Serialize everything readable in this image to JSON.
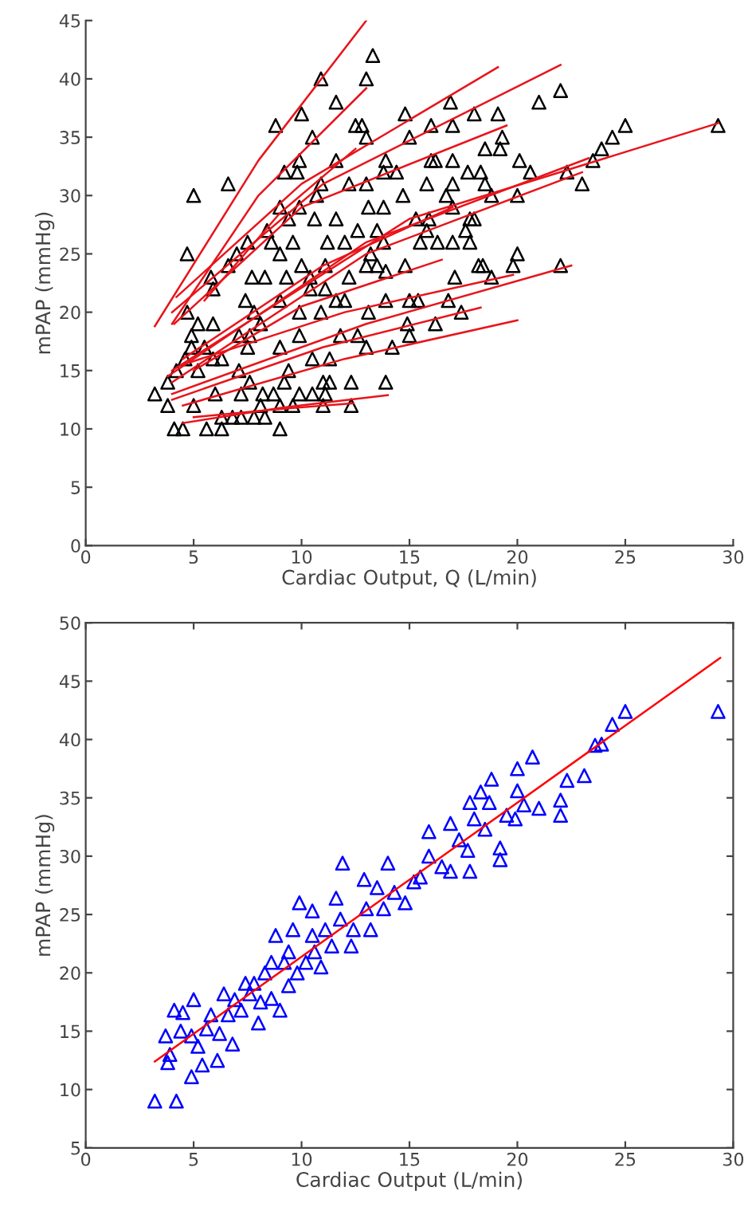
{
  "chart_data": [
    {
      "type": "scatter",
      "xlabel": "Cardiac Output, Q (L/min)",
      "ylabel": "mPAP (mmHg)",
      "xlim": [
        0,
        30
      ],
      "ylim": [
        0,
        45
      ],
      "xticks": [
        0,
        5,
        10,
        15,
        20,
        25,
        30
      ],
      "yticks": [
        0,
        5,
        10,
        15,
        20,
        25,
        30,
        35,
        40,
        45
      ],
      "grid": false,
      "legend": false,
      "series": [
        {
          "color": "#000000",
          "marker": "triangle",
          "x": [
            13.3,
            10.9,
            13.0,
            11.6,
            10.0,
            8.8,
            10.5,
            12.5,
            12.8,
            13.0,
            14.8,
            15.0,
            16.0,
            16.9,
            17.0,
            18.0,
            19.1,
            21.0,
            22.0,
            25.0,
            24.4,
            23.9,
            23.5,
            29.3,
            22.3,
            23.0,
            20.6,
            20.1,
            20.0,
            19.2,
            19.3,
            18.5,
            17.7,
            18.3,
            18.5,
            18.8,
            17.0,
            16.2,
            16.0,
            15.8,
            17.0,
            16.7,
            17.0,
            14.7,
            13.9,
            14.4,
            13.8,
            13.0,
            13.1,
            13.8,
            12.2,
            11.6,
            10.9,
            10.7,
            9.9,
            9.8,
            9.2,
            9.9,
            9.0,
            9.4,
            10.6,
            11.6,
            12.6,
            13.5,
            15.3,
            15.9,
            15.8,
            17.8,
            18.0,
            17.6,
            17.8,
            17.0,
            16.3,
            15.5,
            13.8,
            13.2,
            13.5,
            13.9,
            14.8,
            13.0,
            19.8,
            20.0,
            18.2,
            18.4,
            18.8,
            17.1,
            22.0,
            16.8,
            17.4,
            16.2,
            15.0,
            15.4,
            14.9,
            15.0,
            13.9,
            13.1,
            14.2,
            13.9,
            13.0,
            12.6,
            12.3,
            12.3,
            11.8,
            11.3,
            10.5,
            10.9,
            9.9,
            9.9,
            11.0,
            11.3,
            11.1,
            10.5,
            9.9,
            11.0,
            9.6,
            9.0,
            9.2,
            9.4,
            9.0,
            8.7,
            8.1,
            9.0,
            8.3,
            7.8,
            7.2,
            6.8,
            6.3,
            6.3,
            5.6,
            4.5,
            4.1,
            5.0,
            6.0,
            7.2,
            7.6,
            7.1,
            8.2,
            3.2,
            3.8,
            3.8,
            4.2,
            4.6,
            5.2,
            4.9,
            4.7,
            5.2,
            4.9,
            5.5,
            5.9,
            6.3,
            5.9,
            5.9,
            5.8,
            4.7,
            5.0,
            6.6,
            6.6,
            7.0,
            7.4,
            7.1,
            7.6,
            7.5,
            7.7,
            7.5,
            7.8,
            8.1,
            8.3,
            8.4,
            8.6,
            9.0,
            9.0,
            9.3,
            9.6,
            10.0,
            10.4,
            10.4,
            11.1,
            11.2,
            12.0,
            12.2,
            12.0,
            11.6,
            11.1
          ],
          "values": [
            42,
            40,
            40,
            38,
            37,
            36,
            35,
            36,
            36,
            35,
            37,
            35,
            36,
            38,
            36,
            37,
            37,
            38,
            39,
            36,
            35,
            34,
            33,
            36,
            32,
            31,
            32,
            33,
            30,
            34,
            35,
            34,
            32,
            32,
            31,
            30,
            33,
            33,
            33,
            31,
            31,
            30,
            29,
            30,
            33,
            32,
            32,
            31,
            29,
            29,
            31,
            33,
            31,
            30,
            33,
            32,
            32,
            29,
            29,
            28,
            28,
            28,
            27,
            27,
            28,
            28,
            27,
            28,
            28,
            27,
            26,
            26,
            26,
            26,
            26,
            25,
            24,
            23.5,
            24,
            24,
            24,
            25,
            24,
            24,
            23,
            23,
            24,
            21,
            20,
            19,
            21,
            21,
            19,
            18,
            21,
            20,
            17,
            14,
            17,
            18,
            14,
            12,
            18,
            16,
            16,
            20,
            20,
            18,
            14,
            14,
            13,
            13,
            13,
            12,
            12,
            12,
            14,
            15,
            17,
            13,
            12,
            10,
            11,
            11,
            11,
            11,
            11,
            10,
            10,
            10,
            10,
            12,
            13,
            13,
            14,
            15,
            13,
            13,
            14,
            12,
            15,
            16,
            15,
            18,
            20,
            19,
            17,
            17,
            16,
            16,
            19,
            22,
            23,
            25,
            30,
            31,
            24,
            25,
            21,
            18,
            18,
            17,
            23,
            26,
            20,
            19,
            23,
            27,
            26,
            25,
            21,
            23,
            26,
            24,
            23,
            22,
            22,
            26,
            26,
            23,
            21,
            21,
            24
          ]
        },
        {
          "type": "line",
          "color": "#e8141b",
          "marker": "none",
          "line_style": "solid",
          "x": [
            3.2,
            8,
            13.0
          ],
          "values": [
            18.8,
            33,
            45
          ]
        },
        {
          "type": "line",
          "color": "#e8141b",
          "marker": "none",
          "line_style": "solid",
          "x": [
            4.0,
            8,
            13.0
          ],
          "values": [
            19,
            30,
            39.2
          ]
        },
        {
          "type": "line",
          "color": "#e8141b",
          "marker": "none",
          "line_style": "solid",
          "x": [
            4.2,
            10,
            19.1
          ],
          "values": [
            21.3,
            31,
            41
          ]
        },
        {
          "type": "line",
          "color": "#e8141b",
          "marker": "none",
          "line_style": "solid",
          "x": [
            4.0,
            11,
            22.0
          ],
          "values": [
            20,
            31,
            41.2
          ]
        },
        {
          "type": "line",
          "color": "#e8141b",
          "marker": "none",
          "line_style": "solid",
          "x": [
            4.1,
            10,
            19.5
          ],
          "values": [
            19,
            29,
            36
          ]
        },
        {
          "type": "line",
          "color": "#e8141b",
          "marker": "none",
          "line_style": "solid",
          "x": [
            5.5,
            9,
            12.5
          ],
          "values": [
            21,
            28.5,
            34
          ]
        },
        {
          "type": "line",
          "color": "#e8141b",
          "marker": "none",
          "line_style": "solid",
          "x": [
            4.5,
            11,
            17
          ],
          "values": [
            16,
            24,
            29
          ]
        },
        {
          "type": "line",
          "color": "#e8141b",
          "marker": "none",
          "line_style": "solid",
          "x": [
            4.0,
            15,
            29.3
          ],
          "values": [
            15,
            28,
            36.2
          ]
        },
        {
          "type": "line",
          "color": "#e8141b",
          "marker": "none",
          "line_style": "solid",
          "x": [
            3.8,
            13,
            23.3
          ],
          "values": [
            14.5,
            26,
            33.2
          ]
        },
        {
          "type": "line",
          "color": "#e8141b",
          "marker": "none",
          "line_style": "solid",
          "x": [
            4.0,
            13,
            23.0
          ],
          "values": [
            14,
            25,
            32
          ]
        },
        {
          "type": "line",
          "color": "#e8141b",
          "marker": "none",
          "line_style": "solid",
          "x": [
            5.0,
            10,
            16.5
          ],
          "values": [
            15,
            20.5,
            24.5
          ]
        },
        {
          "type": "line",
          "color": "#e8141b",
          "marker": "none",
          "line_style": "solid",
          "x": [
            4.5,
            12,
            19.8
          ],
          "values": [
            15.5,
            20,
            23.2
          ]
        },
        {
          "type": "line",
          "color": "#e8141b",
          "marker": "none",
          "line_style": "solid",
          "x": [
            4.0,
            13,
            22.5
          ],
          "values": [
            13,
            19,
            24
          ]
        },
        {
          "type": "line",
          "color": "#e8141b",
          "marker": "none",
          "line_style": "solid",
          "x": [
            4.0,
            11,
            18.3
          ],
          "values": [
            12.5,
            17,
            20.4
          ]
        },
        {
          "type": "line",
          "color": "#e8141b",
          "marker": "none",
          "line_style": "solid",
          "x": [
            4.5,
            12,
            20.0
          ],
          "values": [
            12,
            16,
            19.3
          ]
        },
        {
          "type": "line",
          "color": "#e8141b",
          "marker": "none",
          "line_style": "solid",
          "x": [
            4.5,
            9,
            14.0
          ],
          "values": [
            10.5,
            11.8,
            12.9
          ]
        },
        {
          "type": "line",
          "color": "#e8141b",
          "marker": "none",
          "line_style": "solid",
          "x": [
            5.0,
            9,
            12.4
          ],
          "values": [
            11,
            11.7,
            12.2
          ]
        }
      ]
    },
    {
      "type": "scatter",
      "xlabel": "Cardiac Output (L/min)",
      "ylabel": "mPAP (mmHg)",
      "xlim": [
        0,
        30
      ],
      "ylim": [
        5,
        50
      ],
      "xticks": [
        0,
        5,
        10,
        15,
        20,
        25,
        30
      ],
      "yticks": [
        5,
        10,
        15,
        20,
        25,
        30,
        35,
        40,
        45,
        50
      ],
      "grid": false,
      "legend": false,
      "series": [
        {
          "color": "#0000ff",
          "marker": "triangle",
          "x": [
            3.2,
            4.2,
            4.9,
            5.4,
            6.1,
            6.8,
            3.8,
            3.9,
            3.7,
            4.1,
            4.5,
            5.0,
            4.4,
            4.9,
            5.2,
            5.6,
            5.8,
            6.2,
            6.4,
            6.9,
            6.6,
            7.2,
            7.6,
            8.0,
            8.1,
            7.8,
            8.3,
            8.8,
            8.6,
            9.0,
            9.2,
            9.4,
            9.4,
            9.6,
            9.8,
            9.9,
            10.2,
            10.5,
            10.6,
            10.9,
            11.1,
            11.4,
            11.6,
            11.9,
            11.8,
            12.3,
            12.4,
            12.9,
            13.0,
            13.2,
            13.5,
            13.8,
            14.0,
            14.3,
            14.8,
            15.2,
            15.5,
            15.9,
            15.9,
            16.5,
            16.9,
            16.9,
            17.3,
            17.7,
            17.8,
            17.8,
            18.0,
            18.3,
            18.5,
            18.8,
            18.7,
            19.2,
            19.2,
            19.5,
            19.9,
            20.0,
            20.0,
            20.3,
            20.7,
            21.0,
            22.0,
            22.0,
            22.3,
            23.1,
            23.6,
            23.9,
            24.4,
            25.0,
            29.3,
            10.5,
            8.6,
            7.4
          ],
          "values": [
            9.0,
            9.0,
            11.1,
            12.1,
            12.5,
            13.9,
            12.3,
            13.0,
            14.6,
            16.8,
            16.6,
            17.7,
            15.0,
            14.6,
            13.7,
            15.2,
            16.4,
            14.8,
            18.2,
            17.7,
            16.4,
            16.8,
            18.2,
            15.7,
            17.5,
            19.1,
            20.0,
            23.2,
            17.8,
            16.8,
            20.9,
            21.8,
            18.9,
            23.7,
            20.0,
            26.0,
            20.9,
            25.3,
            21.8,
            20.5,
            23.7,
            22.3,
            26.4,
            29.4,
            24.6,
            22.3,
            23.7,
            28.0,
            25.5,
            23.7,
            27.3,
            25.5,
            29.4,
            26.9,
            26.0,
            27.8,
            28.2,
            30.0,
            32.1,
            29.1,
            32.8,
            28.7,
            31.4,
            30.5,
            28.7,
            34.6,
            33.2,
            35.5,
            32.3,
            36.6,
            34.6,
            30.7,
            29.7,
            33.5,
            33.2,
            35.6,
            37.5,
            34.4,
            38.5,
            34.1,
            34.8,
            33.5,
            36.5,
            36.9,
            39.5,
            39.6,
            41.3,
            42.4,
            42.4,
            23.2,
            20.9,
            19.1
          ]
        },
        {
          "type": "line",
          "color": "#ff0000",
          "marker": "none",
          "line_style": "solid",
          "x": [
            3.2,
            29.4
          ],
          "values": [
            12.4,
            47.0
          ]
        }
      ]
    }
  ]
}
